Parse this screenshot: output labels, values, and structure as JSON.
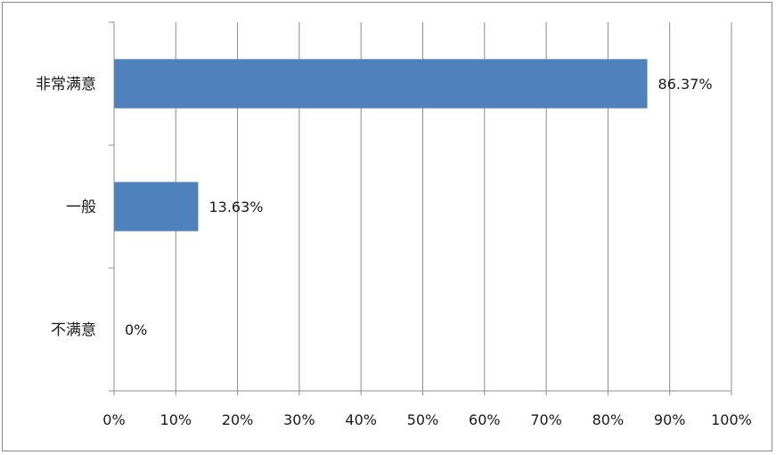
{
  "chart_data": {
    "type": "bar",
    "orientation": "horizontal",
    "categories": [
      "非常满意",
      "一般",
      "不满意"
    ],
    "values": [
      86.37,
      13.63,
      0
    ],
    "data_labels": [
      "86.37%",
      "13.63%",
      "0%"
    ],
    "xlim": [
      0,
      100
    ],
    "x_ticks": [
      "0%",
      "10%",
      "20%",
      "30%",
      "40%",
      "50%",
      "60%",
      "70%",
      "80%",
      "90%",
      "100%"
    ],
    "grid": "vertical",
    "legend": "none",
    "colors": {
      "bar": "#4f81bd",
      "grid": "#8c8c8c",
      "axis": "#8c8c8c"
    }
  }
}
